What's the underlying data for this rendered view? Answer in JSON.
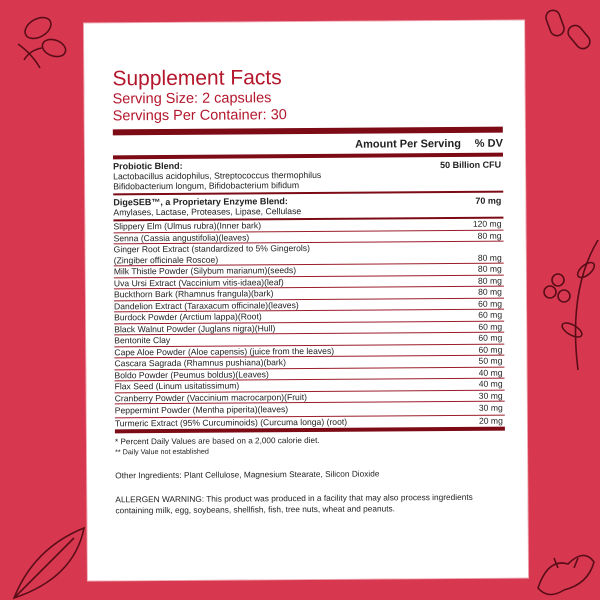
{
  "facts": {
    "title": "Supplement Facts",
    "serving_size": "Serving Size: 2 capsules",
    "servings_per_container": "Servings Per Container: 30",
    "col_amount": "Amount Per Serving",
    "col_dv": "% DV",
    "probiotic": {
      "name": "Probiotic Blend:",
      "amount": "50 Billion  CFU",
      "line1": "Lactobacillus acidophilus, Streptococcus thermophilus",
      "line2": "Bifidobacterium longum, Bifidobacterium bifidum"
    },
    "enzyme": {
      "name": "DigeSEB™, a Proprietary Enzyme Blend:",
      "amount": "70  mg",
      "line1": "Amylases, Lactase, Proteases, Lipase, Cellulase"
    },
    "ingredients": [
      {
        "name": "Slippery Elm (Ulmus rubra)(Inner bark)",
        "amount": "120  mg"
      },
      {
        "name": "Senna (Cassia angustifolia)(leaves)",
        "amount": "80  mg"
      },
      {
        "name": "Ginger Root Extract (standardized to 5% Gingerols)",
        "name2": "(Zingiber officinale Roscoe)",
        "amount": "80  mg"
      },
      {
        "name": "Milk Thistle Powder (Silybum marianum)(seeds)",
        "amount": "80  mg"
      },
      {
        "name": "Uva Ursi Extract (Vaccinium vitis-idaea)(leaf)",
        "amount": "80  mg"
      },
      {
        "name": "Buckthorn Bark (Rhamnus frangula)(bark)",
        "amount": "80  mg"
      },
      {
        "name": "Dandelion Extract (Taraxacum officinale)(leaves)",
        "amount": "60  mg"
      },
      {
        "name": "Burdock Powder (Arctium lappa)(Root)",
        "amount": "60  mg"
      },
      {
        "name": "Black Walnut Powder (Juglans nigra)(Hull)",
        "amount": "60  mg"
      },
      {
        "name": "Bentonite Clay",
        "amount": "60  mg"
      },
      {
        "name": "Cape Aloe Powder (Aloe capensis) (juice from the leaves)",
        "amount": "60  mg"
      },
      {
        "name": "Cascara Sagrada (Rhamnus pushiana)(bark)",
        "amount": "50  mg"
      },
      {
        "name": "Boldo Powder (Peumus boldus)(Leaves)",
        "amount": "40  mg"
      },
      {
        "name": "Flax Seed (Linum usitatissimum)",
        "amount": "40  mg"
      },
      {
        "name": "Cranberry Powder (Vaccinium macrocarpon)(Fruit)",
        "amount": "30  mg"
      },
      {
        "name": "Peppermint Powder (Mentha piperita)(leaves)",
        "amount": "30  mg"
      },
      {
        "name": "Turmeric Extract (95% Curcuminoids) (Curcuma longa) (root)",
        "amount": "20  mg"
      }
    ],
    "footnote1": "* Percent Daily Values are based on a 2,000 calorie diet.",
    "footnote2": "** Daily Value not established",
    "other_ingredients": "Other Ingredients: Plant Cellulose, Magnesium Stearate, Silicon Dioxide",
    "allergen": "ALLERGEN WARNING: This product was produced in a facility that may also process ingredients containing milk, egg, soybeans, shellfish, fish, tree nuts, wheat and peanuts."
  },
  "colors": {
    "background": "#d8384f",
    "accent": "#b4162c",
    "rule": "#7c0b16"
  },
  "decorations": [
    "nuts-doodle",
    "capsule-doodle",
    "berry-branch-doodle",
    "leaf-doodle",
    "ginger-doodle"
  ]
}
